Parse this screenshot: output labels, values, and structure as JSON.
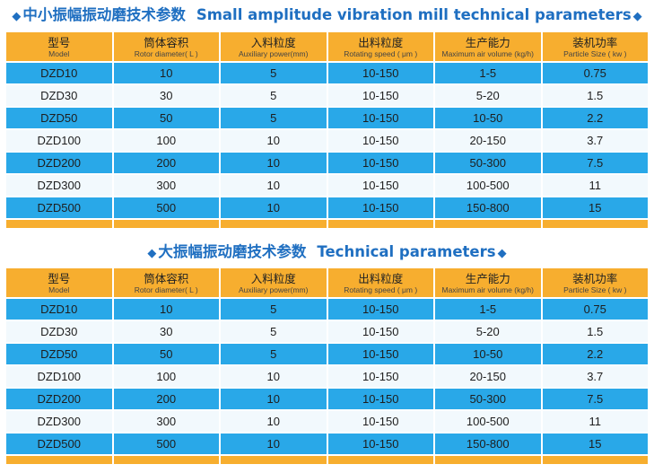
{
  "section1": {
    "title_cn": "中小振幅振动磨技术参数",
    "title_en": "Small amplitude vibration mill technical parameters",
    "headers": [
      {
        "cn": "型号",
        "en": "Model"
      },
      {
        "cn": "筒体容积",
        "en": "Rotor diameter( L )"
      },
      {
        "cn": "入料粒度",
        "en": "Auxiliary power(mm)"
      },
      {
        "cn": "出料粒度",
        "en": "Rotating speed ( μm )"
      },
      {
        "cn": "生产能力",
        "en": "Maximum air volume (kg/h)"
      },
      {
        "cn": "装机功率",
        "en": "Particle Size ( kw )"
      }
    ],
    "rows": [
      [
        "DZD10",
        "10",
        "5",
        "10-150",
        "1-5",
        "0.75"
      ],
      [
        "DZD30",
        "30",
        "5",
        "10-150",
        "5-20",
        "1.5"
      ],
      [
        "DZD50",
        "50",
        "5",
        "10-150",
        "10-50",
        "2.2"
      ],
      [
        "DZD100",
        "100",
        "10",
        "10-150",
        "20-150",
        "3.7"
      ],
      [
        "DZD200",
        "200",
        "10",
        "10-150",
        "50-300",
        "7.5"
      ],
      [
        "DZD300",
        "300",
        "10",
        "10-150",
        "100-500",
        "11"
      ],
      [
        "DZD500",
        "500",
        "10",
        "10-150",
        "150-800",
        "15"
      ]
    ]
  },
  "section2": {
    "title_cn": "大振幅振动磨技术参数",
    "title_en": "Technical parameters",
    "headers": [
      {
        "cn": "型号",
        "en": "Model"
      },
      {
        "cn": "筒体容积",
        "en": "Rotor diameter( L )"
      },
      {
        "cn": "入料粒度",
        "en": "Auxiliary power(mm)"
      },
      {
        "cn": "出料粒度",
        "en": "Rotating speed ( μm )"
      },
      {
        "cn": "生产能力",
        "en": "Maximum air volume (kg/h)"
      },
      {
        "cn": "装机功率",
        "en": "Particle Size ( kw )"
      }
    ],
    "rows": [
      [
        "DZD10",
        "10",
        "5",
        "10-150",
        "1-5",
        "0.75"
      ],
      [
        "DZD30",
        "30",
        "5",
        "10-150",
        "5-20",
        "1.5"
      ],
      [
        "DZD50",
        "50",
        "5",
        "10-150",
        "10-50",
        "2.2"
      ],
      [
        "DZD100",
        "100",
        "10",
        "10-150",
        "20-150",
        "3.7"
      ],
      [
        "DZD200",
        "200",
        "10",
        "10-150",
        "50-300",
        "7.5"
      ],
      [
        "DZD300",
        "300",
        "10",
        "10-150",
        "100-500",
        "11"
      ],
      [
        "DZD500",
        "500",
        "10",
        "10-150",
        "150-800",
        "15"
      ]
    ]
  },
  "colors": {
    "title": "#1f6fc1",
    "header_bg": "#f7ae2f",
    "row_blue": "#29a8e8",
    "row_light": "#f2f9fd"
  }
}
